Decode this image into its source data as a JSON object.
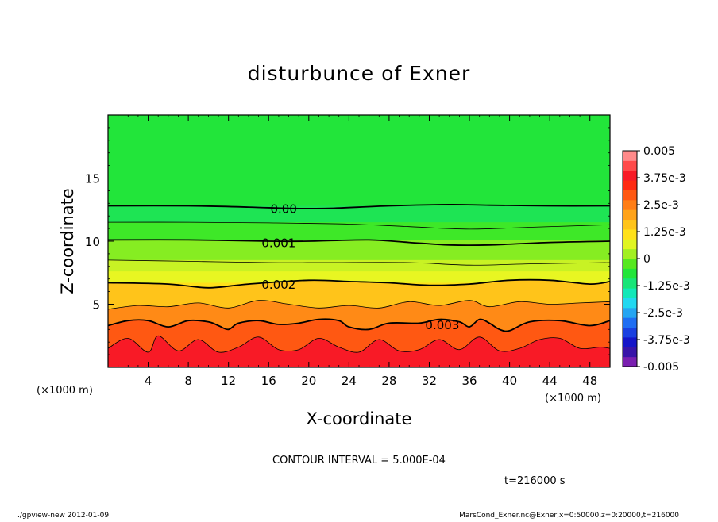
{
  "chart_data": {
    "type": "heatmap",
    "title": "disturbunce of Exner",
    "xlabel": "X-coordinate",
    "ylabel": "Z-coordinate",
    "x_unit": "(×1000 m)",
    "z_unit": "(×1000 m)",
    "xlim": [
      0,
      50
    ],
    "ylim": [
      0,
      20
    ],
    "x_ticks": [
      "4",
      "8",
      "12",
      "16",
      "20",
      "24",
      "28",
      "32",
      "36",
      "40",
      "44",
      "48"
    ],
    "y_ticks": [
      "5",
      "10",
      "15"
    ],
    "x_tick_values": [
      4,
      8,
      12,
      16,
      20,
      24,
      28,
      32,
      36,
      40,
      44,
      48
    ],
    "y_tick_values": [
      5,
      10,
      15
    ],
    "contour_interval_text": "CONTOUR INTERVAL = 5.000E-04",
    "time_text": "t=216000 s",
    "contour_labels": [
      {
        "text": "0.00",
        "x": 17.5,
        "z": 12.6
      },
      {
        "text": "0.001",
        "x": 17.0,
        "z": 9.9
      },
      {
        "text": "0.002",
        "x": 17.0,
        "z": 6.6
      },
      {
        "text": "0.003",
        "x": 33.3,
        "z": 3.4
      }
    ],
    "contours": [
      {
        "level": 0.0,
        "bold": true,
        "points": [
          [
            0,
            12.8
          ],
          [
            8,
            12.8
          ],
          [
            14,
            12.7
          ],
          [
            18,
            12.6
          ],
          [
            22,
            12.6
          ],
          [
            28,
            12.8
          ],
          [
            34,
            12.9
          ],
          [
            38,
            12.85
          ],
          [
            44,
            12.8
          ],
          [
            50,
            12.8
          ]
        ]
      },
      {
        "level": 0.0005,
        "bold": false,
        "points": [
          [
            0,
            11.5
          ],
          [
            8,
            11.5
          ],
          [
            16,
            11.45
          ],
          [
            24,
            11.35
          ],
          [
            30,
            11.15
          ],
          [
            36,
            10.95
          ],
          [
            42,
            11.1
          ],
          [
            50,
            11.3
          ]
        ]
      },
      {
        "level": 0.001,
        "bold": true,
        "points": [
          [
            0,
            10.1
          ],
          [
            8,
            10.1
          ],
          [
            16,
            10.0
          ],
          [
            20,
            10.0
          ],
          [
            26,
            10.1
          ],
          [
            30,
            9.9
          ],
          [
            34,
            9.7
          ],
          [
            38,
            9.7
          ],
          [
            44,
            9.9
          ],
          [
            50,
            10.0
          ]
        ]
      },
      {
        "level": 0.0015,
        "bold": false,
        "points": [
          [
            0,
            8.5
          ],
          [
            8,
            8.4
          ],
          [
            16,
            8.3
          ],
          [
            22,
            8.3
          ],
          [
            30,
            8.3
          ],
          [
            36,
            8.1
          ],
          [
            42,
            8.2
          ],
          [
            50,
            8.3
          ]
        ]
      },
      {
        "level": 0.002,
        "bold": true,
        "points": [
          [
            0,
            6.7
          ],
          [
            6,
            6.6
          ],
          [
            10,
            6.3
          ],
          [
            14,
            6.6
          ],
          [
            20,
            6.9
          ],
          [
            24,
            6.8
          ],
          [
            28,
            6.7
          ],
          [
            32,
            6.5
          ],
          [
            36,
            6.6
          ],
          [
            40,
            6.9
          ],
          [
            44,
            6.9
          ],
          [
            48,
            6.6
          ],
          [
            50,
            6.8
          ]
        ]
      },
      {
        "level": 0.0025,
        "bold": false,
        "points": [
          [
            0,
            4.6
          ],
          [
            3,
            4.9
          ],
          [
            6,
            4.8
          ],
          [
            9,
            5.1
          ],
          [
            12,
            4.7
          ],
          [
            15,
            5.3
          ],
          [
            18,
            5.0
          ],
          [
            21,
            4.7
          ],
          [
            24,
            4.9
          ],
          [
            27,
            4.7
          ],
          [
            30,
            5.2
          ],
          [
            33,
            4.9
          ],
          [
            36,
            5.3
          ],
          [
            38,
            4.8
          ],
          [
            41,
            5.2
          ],
          [
            44,
            5.0
          ],
          [
            47,
            5.1
          ],
          [
            50,
            5.2
          ]
        ]
      },
      {
        "level": 0.003,
        "bold": true,
        "points": [
          [
            0,
            3.3
          ],
          [
            2,
            3.7
          ],
          [
            4,
            3.7
          ],
          [
            6,
            3.2
          ],
          [
            8,
            3.7
          ],
          [
            10,
            3.6
          ],
          [
            11,
            3.3
          ],
          [
            12,
            3.0
          ],
          [
            13,
            3.5
          ],
          [
            15,
            3.7
          ],
          [
            17,
            3.4
          ],
          [
            19,
            3.5
          ],
          [
            21,
            3.8
          ],
          [
            23,
            3.7
          ],
          [
            24,
            3.2
          ],
          [
            26,
            3.0
          ],
          [
            28,
            3.5
          ],
          [
            31,
            3.5
          ],
          [
            33,
            3.8
          ],
          [
            35,
            3.6
          ],
          [
            36,
            3.2
          ],
          [
            37,
            3.8
          ],
          [
            38,
            3.5
          ],
          [
            39,
            3.0
          ],
          [
            40,
            2.9
          ],
          [
            42,
            3.6
          ],
          [
            45,
            3.7
          ],
          [
            48,
            3.3
          ],
          [
            50,
            3.7
          ]
        ]
      },
      {
        "level": 0.0035,
        "bold": false,
        "points": [
          [
            0,
            1.5
          ],
          [
            2,
            2.3
          ],
          [
            4,
            1.2
          ],
          [
            5,
            2.5
          ],
          [
            7,
            1.3
          ],
          [
            9,
            2.2
          ],
          [
            11,
            1.2
          ],
          [
            13,
            1.6
          ],
          [
            15,
            2.4
          ],
          [
            17,
            1.4
          ],
          [
            19,
            1.4
          ],
          [
            21,
            2.3
          ],
          [
            23,
            1.6
          ],
          [
            25,
            1.2
          ],
          [
            27,
            2.2
          ],
          [
            29,
            1.3
          ],
          [
            31,
            1.4
          ],
          [
            33,
            2.2
          ],
          [
            35,
            1.4
          ],
          [
            37,
            2.4
          ],
          [
            39,
            1.3
          ],
          [
            41,
            1.5
          ],
          [
            43,
            2.2
          ],
          [
            45,
            2.3
          ],
          [
            47,
            1.5
          ],
          [
            49,
            1.6
          ],
          [
            50,
            1.5
          ]
        ]
      }
    ],
    "colorbar": {
      "labels": [
        "0.005",
        "3.75e-3",
        "2.5e-3",
        "1.25e-3",
        "0",
        "-1.25e-3",
        "-2.5e-3",
        "-3.75e-3",
        "-0.005"
      ],
      "label_values": [
        0.005,
        0.00375,
        0.0025,
        0.00125,
        0,
        -0.00125,
        -0.0025,
        -0.00375,
        -0.005
      ],
      "min": -0.005,
      "max": 0.005,
      "colors": [
        "#7a1fb0",
        "#3814a8",
        "#1515c8",
        "#1a40e0",
        "#1f6ef2",
        "#25a5f2",
        "#22d8f0",
        "#12e8b8",
        "#18e578",
        "#22e53a",
        "#56e820",
        "#a2ef22",
        "#e0f522",
        "#ffe11a",
        "#ffc41a",
        "#ffa31a",
        "#ff7e16",
        "#ff5812",
        "#ff2a12",
        "#f81a26",
        "#ff4a4a",
        "#ff8a8a"
      ]
    },
    "field_bands": [
      {
        "z_top": 20.0,
        "color": "#22e53a"
      },
      {
        "z_top": 12.8,
        "color": "#1ee454"
      },
      {
        "z_top": 11.5,
        "color": "#3ee828"
      },
      {
        "z_top": 10.1,
        "color": "#86ed22"
      },
      {
        "z_top": 8.5,
        "color": "#c8f224"
      },
      {
        "z_top": 7.6,
        "color": "#e8f622"
      },
      {
        "z_top": 6.7,
        "color": "#ffe11a"
      },
      {
        "z_top": 5.7,
        "color": "#ffc41a"
      },
      {
        "z_top": 4.8,
        "color": "#ffa31a"
      },
      {
        "z_top": 4.1,
        "color": "#ff7e16"
      },
      {
        "z_top": 3.5,
        "color": "#ff5812"
      },
      {
        "z_top": 2.3,
        "color": "#ff3a12"
      },
      {
        "z_top": 1.5,
        "color": "#f81a26"
      }
    ]
  },
  "footer": {
    "left": "./gpview-new  2012-01-09",
    "right": "MarsCond_Exner.nc@Exner,x=0:50000,z=0:20000,t=216000"
  }
}
